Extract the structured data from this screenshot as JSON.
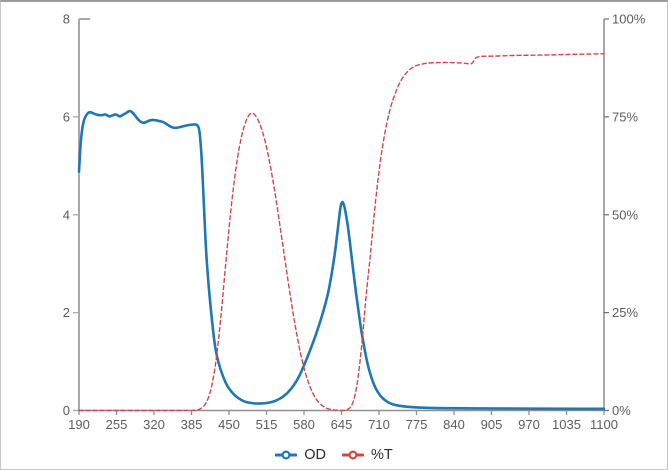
{
  "chart_data": {
    "type": "line",
    "title": "",
    "x_axis": {
      "min": 190,
      "max": 1100,
      "ticks": [
        190,
        255,
        320,
        385,
        450,
        515,
        580,
        645,
        710,
        775,
        840,
        905,
        970,
        1035,
        1100
      ]
    },
    "y_axis_left": {
      "min": 0,
      "max": 8,
      "ticks": [
        0,
        2,
        4,
        6,
        8
      ],
      "tick_suffix": ""
    },
    "y_axis_right": {
      "min": 0,
      "max": 100,
      "ticks": [
        0,
        25,
        50,
        75,
        100
      ],
      "tick_suffix": "%"
    },
    "grid": false,
    "legend_position": "bottom",
    "series": [
      {
        "name": "OD",
        "axis": "left",
        "color": "#1f77b4",
        "style": "solid",
        "line_width": 2.6,
        "points": [
          [
            190,
            4.88
          ],
          [
            192,
            5.35
          ],
          [
            195,
            5.72
          ],
          [
            198,
            5.92
          ],
          [
            202,
            6.03
          ],
          [
            207,
            6.1
          ],
          [
            212,
            6.09
          ],
          [
            218,
            6.05
          ],
          [
            224,
            6.04
          ],
          [
            230,
            6.03
          ],
          [
            236,
            6.06
          ],
          [
            242,
            6.0
          ],
          [
            248,
            6.03
          ],
          [
            254,
            6.06
          ],
          [
            260,
            6.0
          ],
          [
            266,
            6.04
          ],
          [
            272,
            6.08
          ],
          [
            278,
            6.13
          ],
          [
            284,
            6.08
          ],
          [
            290,
            5.98
          ],
          [
            296,
            5.9
          ],
          [
            303,
            5.87
          ],
          [
            310,
            5.92
          ],
          [
            317,
            5.94
          ],
          [
            324,
            5.93
          ],
          [
            330,
            5.91
          ],
          [
            336,
            5.9
          ],
          [
            343,
            5.84
          ],
          [
            350,
            5.79
          ],
          [
            357,
            5.77
          ],
          [
            364,
            5.79
          ],
          [
            371,
            5.81
          ],
          [
            378,
            5.83
          ],
          [
            385,
            5.84
          ],
          [
            391,
            5.85
          ],
          [
            396,
            5.83
          ],
          [
            399,
            5.72
          ],
          [
            402,
            5.3
          ],
          [
            405,
            4.6
          ],
          [
            408,
            3.8
          ],
          [
            411,
            3.1
          ],
          [
            415,
            2.5
          ],
          [
            419,
            2.0
          ],
          [
            424,
            1.45
          ],
          [
            429,
            1.1
          ],
          [
            435,
            0.85
          ],
          [
            441,
            0.65
          ],
          [
            448,
            0.48
          ],
          [
            455,
            0.37
          ],
          [
            462,
            0.29
          ],
          [
            469,
            0.23
          ],
          [
            477,
            0.18
          ],
          [
            485,
            0.16
          ],
          [
            493,
            0.145
          ],
          [
            501,
            0.14
          ],
          [
            509,
            0.145
          ],
          [
            517,
            0.155
          ],
          [
            525,
            0.175
          ],
          [
            533,
            0.21
          ],
          [
            541,
            0.26
          ],
          [
            549,
            0.33
          ],
          [
            557,
            0.43
          ],
          [
            565,
            0.56
          ],
          [
            573,
            0.73
          ],
          [
            581,
            0.95
          ],
          [
            589,
            1.18
          ],
          [
            597,
            1.43
          ],
          [
            605,
            1.7
          ],
          [
            613,
            2.0
          ],
          [
            621,
            2.35
          ],
          [
            628,
            2.78
          ],
          [
            634,
            3.25
          ],
          [
            639,
            3.75
          ],
          [
            643,
            4.15
          ],
          [
            646,
            4.28
          ],
          [
            649,
            4.22
          ],
          [
            653,
            4.0
          ],
          [
            658,
            3.6
          ],
          [
            663,
            3.1
          ],
          [
            668,
            2.6
          ],
          [
            673,
            2.15
          ],
          [
            679,
            1.65
          ],
          [
            685,
            1.25
          ],
          [
            691,
            0.9
          ],
          [
            698,
            0.62
          ],
          [
            705,
            0.43
          ],
          [
            712,
            0.3
          ],
          [
            720,
            0.21
          ],
          [
            728,
            0.15
          ],
          [
            738,
            0.11
          ],
          [
            750,
            0.085
          ],
          [
            765,
            0.07
          ],
          [
            785,
            0.058
          ],
          [
            815,
            0.05
          ],
          [
            855,
            0.045
          ],
          [
            905,
            0.04
          ],
          [
            960,
            0.038
          ],
          [
            1020,
            0.036
          ],
          [
            1100,
            0.035
          ]
        ]
      },
      {
        "name": "%T",
        "axis": "right",
        "color": "#d04747",
        "style": "dashed",
        "line_width": 1.4,
        "points": [
          [
            190,
            0
          ],
          [
            260,
            0
          ],
          [
            330,
            0
          ],
          [
            385,
            0
          ],
          [
            395,
            0.1
          ],
          [
            402,
            0.5
          ],
          [
            408,
            1.3
          ],
          [
            414,
            3
          ],
          [
            420,
            6
          ],
          [
            426,
            11
          ],
          [
            432,
            18
          ],
          [
            438,
            27
          ],
          [
            444,
            37
          ],
          [
            450,
            46.5
          ],
          [
            456,
            55
          ],
          [
            462,
            62
          ],
          [
            468,
            67.5
          ],
          [
            474,
            71.5
          ],
          [
            480,
            74.3
          ],
          [
            486,
            75.8
          ],
          [
            491,
            76
          ],
          [
            496,
            75.4
          ],
          [
            502,
            73.8
          ],
          [
            508,
            71.3
          ],
          [
            514,
            68
          ],
          [
            520,
            63.8
          ],
          [
            526,
            59
          ],
          [
            532,
            53.5
          ],
          [
            538,
            47.5
          ],
          [
            544,
            41.5
          ],
          [
            550,
            35.5
          ],
          [
            556,
            29.5
          ],
          [
            562,
            24
          ],
          [
            568,
            19
          ],
          [
            574,
            14.5
          ],
          [
            580,
            10.8
          ],
          [
            586,
            7.8
          ],
          [
            592,
            5.4
          ],
          [
            598,
            3.6
          ],
          [
            604,
            2.3
          ],
          [
            610,
            1.4
          ],
          [
            616,
            0.8
          ],
          [
            622,
            0.4
          ],
          [
            630,
            0.15
          ],
          [
            638,
            0.05
          ],
          [
            646,
            0.02
          ],
          [
            653,
            0.1
          ],
          [
            659,
            0.5
          ],
          [
            664,
            1.6
          ],
          [
            669,
            4
          ],
          [
            674,
            8.5
          ],
          [
            679,
            15
          ],
          [
            684,
            23
          ],
          [
            689,
            31.5
          ],
          [
            694,
            38
          ],
          [
            699,
            46
          ],
          [
            704,
            53.5
          ],
          [
            709,
            60
          ],
          [
            714,
            65.5
          ],
          [
            719,
            70
          ],
          [
            725,
            74.5
          ],
          [
            731,
            78
          ],
          [
            738,
            81
          ],
          [
            745,
            83.5
          ],
          [
            753,
            85.5
          ],
          [
            762,
            87
          ],
          [
            772,
            88
          ],
          [
            784,
            88.5
          ],
          [
            798,
            88.8
          ],
          [
            815,
            88.9
          ],
          [
            832,
            88.9
          ],
          [
            848,
            88.8
          ],
          [
            860,
            88.7
          ],
          [
            869,
            88.4
          ],
          [
            873,
            88.9
          ],
          [
            877,
            90
          ],
          [
            882,
            90.4
          ],
          [
            890,
            90.5
          ],
          [
            905,
            90.5
          ],
          [
            925,
            90.6
          ],
          [
            950,
            90.7
          ],
          [
            975,
            90.75
          ],
          [
            1000,
            90.8
          ],
          [
            1030,
            90.9
          ],
          [
            1060,
            91.0
          ],
          [
            1100,
            91.1
          ]
        ]
      }
    ]
  },
  "legend": {
    "od_label": "OD",
    "t_label": "%T"
  },
  "colors": {
    "left_axis": "#a8a8a8",
    "bottom_axis": "#8f8f8f",
    "right_axis": "#6f6f6f",
    "tick_text": "#5d5d5d",
    "card_border": "#c6c6c6"
  }
}
